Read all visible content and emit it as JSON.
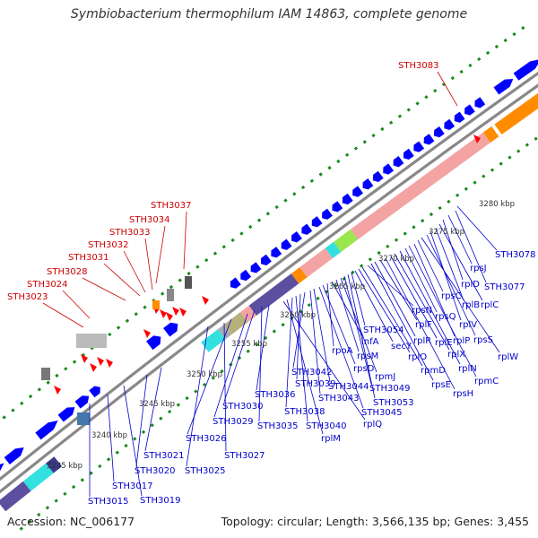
{
  "title": "Symbiobacterium thermophilum IAM 14863, complete genome",
  "accession_text": "Accession: NC_006177",
  "summary_text": "Topology: circular; Length: 3,566,135 bp; Genes: 3,455",
  "colors": {
    "backbone": "#808080",
    "cds": "#0000ff",
    "rna": "#ff0000",
    "label_cds": "#0000cc",
    "label_rna": "#cc0000",
    "tick": "#1a8a1a",
    "ribosomal": "#f4a3a3",
    "operon_dark": "#5c4fa0",
    "highlight": "#ff8c00",
    "accent_cyan": "#33e0e0",
    "accent_lime": "#99e64d",
    "accent_olive": "#b8b07a"
  },
  "scale_labels": [
    "3235 kbp",
    "3240 kbp",
    "3245 kbp",
    "3250 kbp",
    "3255 kbp",
    "3260 kbp",
    "3265 kbp",
    "3270 kbp",
    "3275 kbp",
    "3280 kbp"
  ],
  "rna_labels": [
    "STH3083",
    "STH3037",
    "STH3034",
    "STH3033",
    "STH3032",
    "STH3031",
    "STH3028",
    "STH3024",
    "STH3023"
  ],
  "cds_labels": [
    "STH3078",
    "STH3077",
    "rpsJ",
    "rplD",
    "rplC",
    "rplB",
    "rplV",
    "rpsS",
    "rplW",
    "rpsC",
    "rplP",
    "rpmC",
    "rpsQ",
    "rplN",
    "rplX",
    "rplE",
    "rpsH",
    "rplF",
    "rplR",
    "rpsE",
    "rpsN",
    "rpmD",
    "rplO",
    "secY",
    "STH3054",
    "STH3053",
    "STH3049",
    "rpmJ",
    "rpsM",
    "infA",
    "rpoA",
    "rpsD",
    "STH3045",
    "STH3044",
    "STH3043",
    "STH3042",
    "STH3039",
    "STH3040",
    "STH3038",
    "rplM",
    "rplQ",
    "STH3036",
    "STH3035",
    "STH3030",
    "STH3029",
    "STH3026",
    "STH3027",
    "STH3025",
    "STH3021",
    "STH3020",
    "STH3019",
    "STH3017",
    "STH3015"
  ]
}
